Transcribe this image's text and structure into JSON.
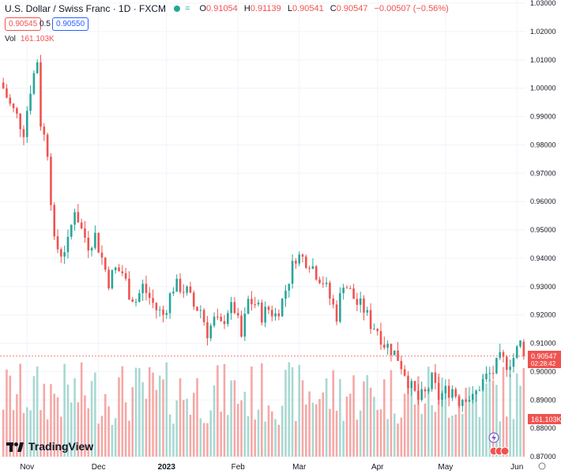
{
  "header": {
    "symbol": "U.S. Dollar / Swiss Franc · 1D · FXCM",
    "open_label": "O",
    "open": "0.91054",
    "high_label": "H",
    "high": "0.91139",
    "low_label": "L",
    "low": "0.90541",
    "close_label": "C",
    "close": "0.90547",
    "change": "−0.00507 (−0.56%)",
    "eq_icon": "equals-icon"
  },
  "bid": "0.90545",
  "spread": "0.5",
  "ask": "0.90550",
  "volume": {
    "label": "Vol",
    "value": "161.103K"
  },
  "last_price": {
    "value": "0.90547",
    "countdown": "02:28:42"
  },
  "volume_badge": "161.103K",
  "logo_text": "TradingView",
  "colors": {
    "up": "#26a69a",
    "down": "#ef5350",
    "up_vol": "#a8d8d2",
    "down_vol": "#f5a8a6",
    "axis_text": "#131722"
  },
  "chart_data": {
    "type": "candlestick",
    "y_ticks": [
      "0.87000",
      "0.88000",
      "0.89000",
      "0.90000",
      "0.91000",
      "0.92000",
      "0.93000",
      "0.94000",
      "0.95000",
      "0.96000",
      "0.97000",
      "0.98000",
      "0.99000",
      "1.00000",
      "1.01000",
      "1.02000",
      "1.03000"
    ],
    "ylim": [
      0.87,
      1.03
    ],
    "x_ticks": [
      "Nov",
      "Dec",
      "2023",
      "Feb",
      "Mar",
      "Apr",
      "May",
      "Jun"
    ],
    "x_tick_candles": [
      7,
      28,
      48,
      69,
      87,
      110,
      130,
      151
    ],
    "close_path": [
      [
        0,
        1.0
      ],
      [
        2,
        0.994
      ],
      [
        4,
        0.99
      ],
      [
        6,
        0.985
      ],
      [
        8,
        1.0
      ],
      [
        10,
        1.01
      ],
      [
        11,
        0.988
      ],
      [
        13,
        0.978
      ],
      [
        15,
        0.945
      ],
      [
        17,
        0.942
      ],
      [
        19,
        0.945
      ],
      [
        21,
        0.958
      ],
      [
        23,
        0.95
      ],
      [
        25,
        0.945
      ],
      [
        27,
        0.948
      ],
      [
        29,
        0.94
      ],
      [
        31,
        0.932
      ],
      [
        33,
        0.936
      ],
      [
        35,
        0.935
      ],
      [
        37,
        0.928
      ],
      [
        39,
        0.925
      ],
      [
        41,
        0.93
      ],
      [
        43,
        0.926
      ],
      [
        45,
        0.922
      ],
      [
        47,
        0.92
      ],
      [
        50,
        0.93
      ],
      [
        52,
        0.93
      ],
      [
        54,
        0.928
      ],
      [
        56,
        0.923
      ],
      [
        58,
        0.922
      ],
      [
        60,
        0.914
      ],
      [
        62,
        0.918
      ],
      [
        64,
        0.916
      ],
      [
        66,
        0.922
      ],
      [
        68,
        0.922
      ],
      [
        70,
        0.912
      ],
      [
        72,
        0.925
      ],
      [
        74,
        0.924
      ],
      [
        76,
        0.92
      ],
      [
        78,
        0.922
      ],
      [
        80,
        0.92
      ],
      [
        82,
        0.925
      ],
      [
        84,
        0.933
      ],
      [
        86,
        0.941
      ],
      [
        88,
        0.94
      ],
      [
        90,
        0.939
      ],
      [
        92,
        0.935
      ],
      [
        94,
        0.932
      ],
      [
        96,
        0.926
      ],
      [
        98,
        0.92
      ],
      [
        100,
        0.932
      ],
      [
        102,
        0.928
      ],
      [
        104,
        0.924
      ],
      [
        106,
        0.922
      ],
      [
        108,
        0.917
      ],
      [
        110,
        0.915
      ],
      [
        112,
        0.91
      ],
      [
        114,
        0.908
      ],
      [
        116,
        0.905
      ],
      [
        118,
        0.9
      ],
      [
        120,
        0.894
      ],
      [
        122,
        0.89
      ],
      [
        124,
        0.892
      ],
      [
        126,
        0.897
      ],
      [
        128,
        0.891
      ],
      [
        130,
        0.893
      ],
      [
        132,
        0.894
      ],
      [
        134,
        0.89
      ],
      [
        136,
        0.892
      ],
      [
        138,
        0.89
      ],
      [
        140,
        0.895
      ],
      [
        142,
        0.898
      ],
      [
        144,
        0.9
      ],
      [
        146,
        0.904
      ],
      [
        148,
        0.903
      ],
      [
        150,
        0.905
      ],
      [
        152,
        0.91
      ],
      [
        153,
        0.9055
      ]
    ],
    "last_price": 0.90547
  }
}
